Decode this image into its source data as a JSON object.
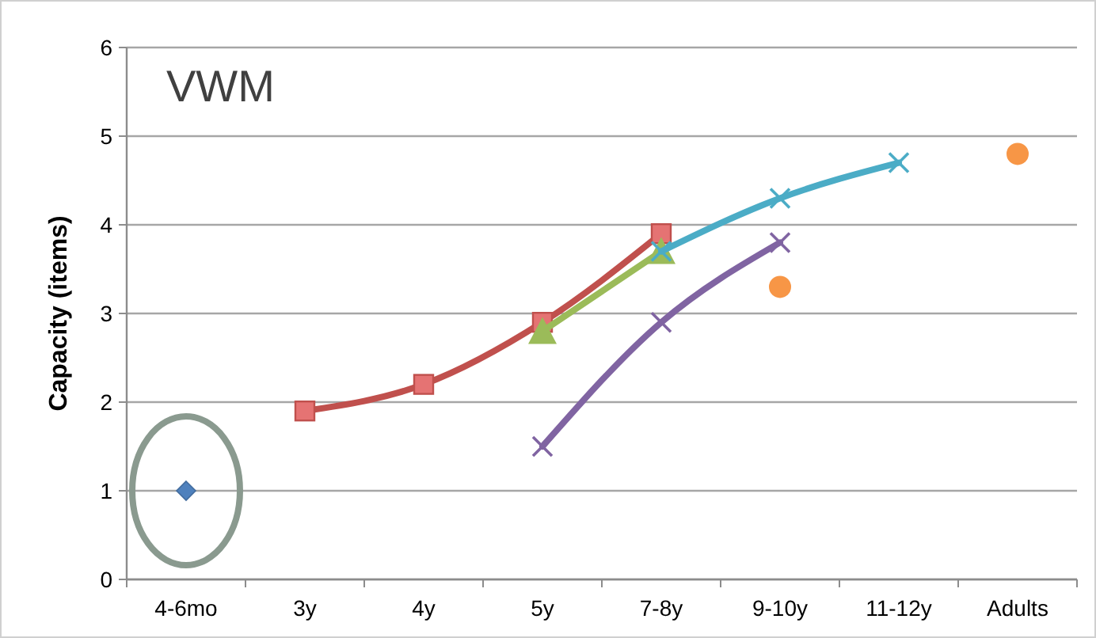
{
  "chart_data": {
    "type": "line",
    "title": "VWM",
    "ylabel": "Capacity (items)",
    "categories": [
      "4-6mo",
      "3y",
      "4y",
      "5y",
      "7-8y",
      "9-10y",
      "11-12y",
      "Adults"
    ],
    "series": [
      {
        "type": "scatter",
        "color": "#4f81bd",
        "marker": "diamond",
        "values": [
          1.0,
          null,
          null,
          null,
          null,
          null,
          null,
          null
        ]
      },
      {
        "color": "#c0504d",
        "marker": "square",
        "values": [
          null,
          1.9,
          2.2,
          2.9,
          3.9,
          null,
          null,
          null
        ]
      },
      {
        "color": "#9bbb59",
        "marker": "triangle",
        "values": [
          null,
          null,
          null,
          2.8,
          3.7,
          null,
          null,
          null
        ]
      },
      {
        "color": "#8064a2",
        "marker": "cross",
        "values": [
          null,
          null,
          null,
          1.5,
          2.9,
          3.8,
          null,
          null
        ]
      },
      {
        "color": "#4bacc6",
        "marker": "cross",
        "values": [
          null,
          null,
          null,
          null,
          3.7,
          4.3,
          4.7,
          null
        ]
      },
      {
        "type": "scatter",
        "color": "#f79646",
        "marker": "circle",
        "values": [
          null,
          null,
          null,
          null,
          null,
          3.3,
          null,
          4.8
        ]
      }
    ],
    "ylim": [
      0,
      6
    ],
    "yticks": [
      0,
      1,
      2,
      3,
      4,
      5,
      6
    ],
    "grid": "y"
  }
}
